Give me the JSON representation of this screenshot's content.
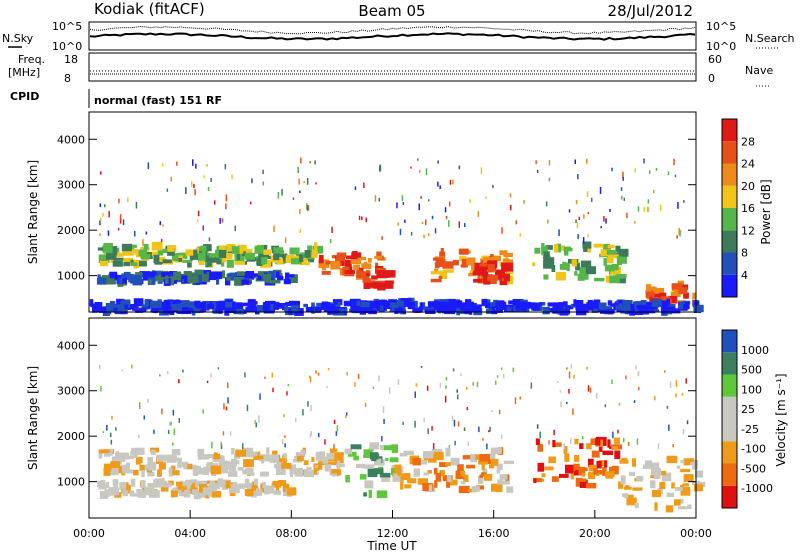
{
  "header": {
    "station": "Kodiak (fitACF)",
    "beam": "Beam 05",
    "date": "28/Jul/2012"
  },
  "noise_panel": {
    "left_label": "N.Sky",
    "right_label": "N.Search",
    "left_ticks": [
      "10^5",
      "10^0"
    ],
    "right_ticks": [
      "10^5",
      "10^0"
    ]
  },
  "freq_panel": {
    "left_label_1": "Freq.",
    "left_label_2": "[MHz]",
    "right_label": "Nave",
    "left_ticks": [
      "18",
      "8"
    ],
    "right_ticks": [
      "60",
      "0"
    ]
  },
  "cpid": {
    "label": "CPID",
    "value": "normal (fast) 151 RF"
  },
  "colors": {
    "power": [
      "#1a1aff",
      "#2050b8",
      "#3c7a5a",
      "#56b64a",
      "#f2c418",
      "#ee8a1a",
      "#e8501a",
      "#e01818"
    ],
    "velocity": [
      "#e01010",
      "#ee6a10",
      "#f09a18",
      "#c8c8c0",
      "#c8c8c0",
      "#5ec83a",
      "#3c8060",
      "#2050c0"
    ]
  },
  "chart_data": [
    {
      "type": "heatmap",
      "name": "power",
      "ylabel": "Slant Range [km]",
      "yticks": [
        "1000",
        "2000",
        "3000",
        "4000"
      ],
      "ylim": [
        200,
        4600
      ],
      "xlim": [
        0,
        24
      ],
      "colorbar_label": "Power [dB]",
      "colorbar_ticks": [
        "4",
        "8",
        "12",
        "16",
        "20",
        "24",
        "28"
      ],
      "colorbar_range": [
        0,
        32
      ],
      "bands": [
        {
          "t0": 0.3,
          "t1": 9.0,
          "r0": 1250,
          "r1": 1650,
          "level": 3
        },
        {
          "t0": 9.0,
          "t1": 11.5,
          "r0": 1000,
          "r1": 1500,
          "level": 6
        },
        {
          "t0": 10.3,
          "t1": 11.7,
          "r0": 750,
          "r1": 1050,
          "level": 7
        },
        {
          "t0": 0.3,
          "t1": 8.0,
          "r0": 850,
          "r1": 1050,
          "level": 1
        },
        {
          "t0": 13.5,
          "t1": 16.5,
          "r0": 850,
          "r1": 1550,
          "level": 5
        },
        {
          "t0": 15.0,
          "t1": 16.5,
          "r0": 850,
          "r1": 1250,
          "level": 7
        },
        {
          "t0": 17.5,
          "t1": 21.0,
          "r0": 900,
          "r1": 1700,
          "level": 3
        },
        {
          "t0": 22.0,
          "t1": 24.0,
          "r0": 400,
          "r1": 800,
          "level": 6
        },
        {
          "t0": 0.0,
          "t1": 24.0,
          "r0": 200,
          "r1": 420,
          "level": 0
        }
      ],
      "time_series_scatter": "approximate backscatter patches"
    },
    {
      "type": "heatmap",
      "name": "velocity",
      "ylabel": "Slant Range [km]",
      "yticks": [
        "1000",
        "2000",
        "3000",
        "4000"
      ],
      "ylim": [
        200,
        4600
      ],
      "xlim": [
        0,
        24
      ],
      "xlabel": "Time UT",
      "xticks": [
        "00:00",
        "04:00",
        "08:00",
        "12:00",
        "16:00",
        "20:00",
        "00:00"
      ],
      "colorbar_label": "Velocity [m s⁻¹]",
      "colorbar_ticks": [
        "1000",
        "500",
        "100",
        "25",
        "-25",
        "-100",
        "-500",
        "-1000"
      ],
      "bands": [
        {
          "t0": 0.3,
          "t1": 10.0,
          "r0": 1150,
          "r1": 1700,
          "level": 3
        },
        {
          "t0": 0.3,
          "t1": 8.0,
          "r0": 700,
          "r1": 1000,
          "level": 3
        },
        {
          "t0": 10.0,
          "t1": 12.0,
          "r0": 700,
          "r1": 1800,
          "level": 5
        },
        {
          "t0": 12.0,
          "t1": 16.5,
          "r0": 800,
          "r1": 1700,
          "level": 2
        },
        {
          "t0": 17.5,
          "t1": 21.0,
          "r0": 900,
          "r1": 1900,
          "level": 1
        },
        {
          "t0": 21.0,
          "t1": 24.0,
          "r0": 400,
          "r1": 1500,
          "level": 3
        }
      ]
    }
  ]
}
